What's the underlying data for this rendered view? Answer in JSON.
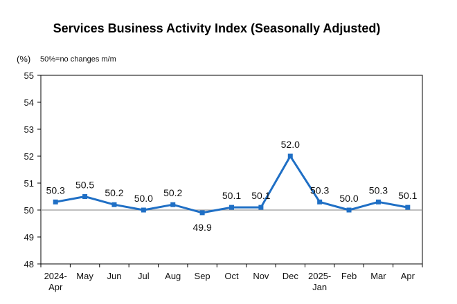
{
  "chart_data": {
    "type": "line",
    "title": "Services Business Activity Index (Seasonally Adjusted)",
    "unit_label": "(%)",
    "note": "50%=no changes m/m",
    "ylim": [
      48,
      55
    ],
    "yticks": [
      48,
      49,
      50,
      51,
      52,
      53,
      54,
      55
    ],
    "reference_line": 50,
    "grid": false,
    "categories": [
      [
        "2024-",
        "Apr"
      ],
      [
        "May"
      ],
      [
        "Jun"
      ],
      [
        "Jul"
      ],
      [
        "Aug"
      ],
      [
        "Sep"
      ],
      [
        "Oct"
      ],
      [
        "Nov"
      ],
      [
        "Dec"
      ],
      [
        "2025-",
        "Jan"
      ],
      [
        "Feb"
      ],
      [
        "Mar"
      ],
      [
        "Apr"
      ]
    ],
    "series": [
      {
        "values": [
          50.3,
          50.5,
          50.2,
          50.0,
          50.2,
          49.9,
          50.1,
          50.1,
          52.0,
          50.3,
          50.0,
          50.3,
          50.1
        ],
        "labels": [
          "50.3",
          "50.5",
          "50.2",
          "50.0",
          "50.2",
          "49.9",
          "50.1",
          "50.1",
          "52.0",
          "50.3",
          "50.0",
          "50.3",
          "50.1"
        ],
        "label_below": [
          false,
          false,
          false,
          false,
          false,
          true,
          false,
          false,
          false,
          false,
          false,
          false,
          false
        ],
        "color": "#1f6fc5"
      }
    ]
  }
}
